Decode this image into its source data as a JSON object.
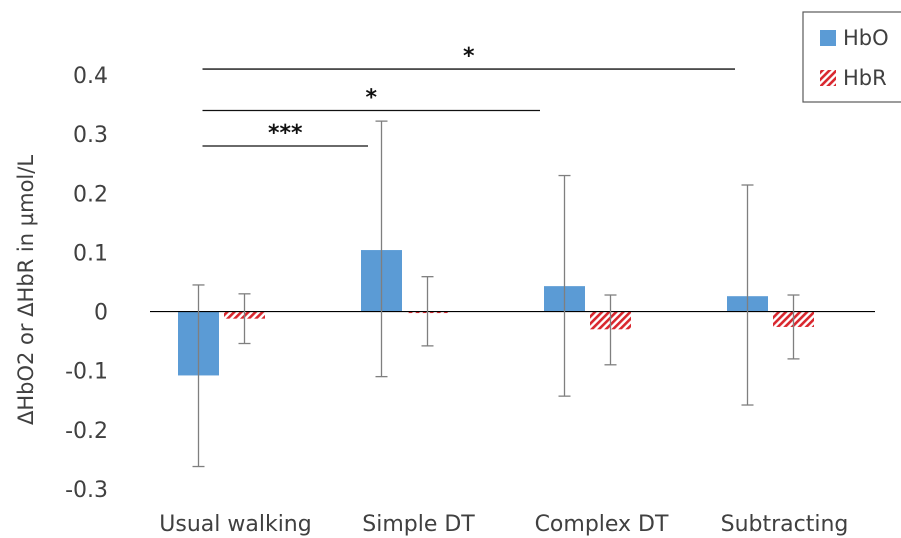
{
  "chart_data": {
    "type": "bar",
    "ylabel": "ΔHbO2 or ΔHbR in µmol/L",
    "categories": [
      "Usual walking",
      "Simple DT",
      "Complex DT",
      "Subtracting"
    ],
    "ylim": [
      -0.3,
      0.4
    ],
    "yticks": [
      "0.4",
      "0.3",
      "0.2",
      "0.1",
      "0",
      "-0.1",
      "-0.2",
      "-0.3"
    ],
    "ytick_values": [
      0.4,
      0.3,
      0.2,
      0.1,
      0,
      -0.1,
      -0.2,
      -0.3
    ],
    "legend_position": "top-right",
    "series": [
      {
        "name": "HbO",
        "color": "#5b9bd5",
        "pattern": "solid",
        "values": [
          -0.108,
          0.104,
          0.043,
          0.026
        ],
        "err_high": [
          0.045,
          0.322,
          0.23,
          0.214
        ],
        "err_low": [
          -0.262,
          -0.11,
          -0.143,
          -0.158
        ]
      },
      {
        "name": "HbR",
        "color": "#d9272e",
        "pattern": "hatched",
        "values": [
          -0.012,
          -0.002,
          -0.03,
          -0.026
        ],
        "err_high": [
          0.03,
          0.059,
          0.028,
          0.028
        ],
        "err_low": [
          -0.054,
          -0.058,
          -0.09,
          -0.08
        ]
      }
    ],
    "significance": [
      {
        "from": "Usual walking",
        "to": "Simple DT",
        "label": "***",
        "y": 0.28
      },
      {
        "from": "Usual walking",
        "to": "Complex DT",
        "label": "*",
        "y": 0.34
      },
      {
        "from": "Usual walking",
        "to": "Subtracting",
        "label": "*",
        "y": 0.41
      }
    ],
    "grid": false
  }
}
